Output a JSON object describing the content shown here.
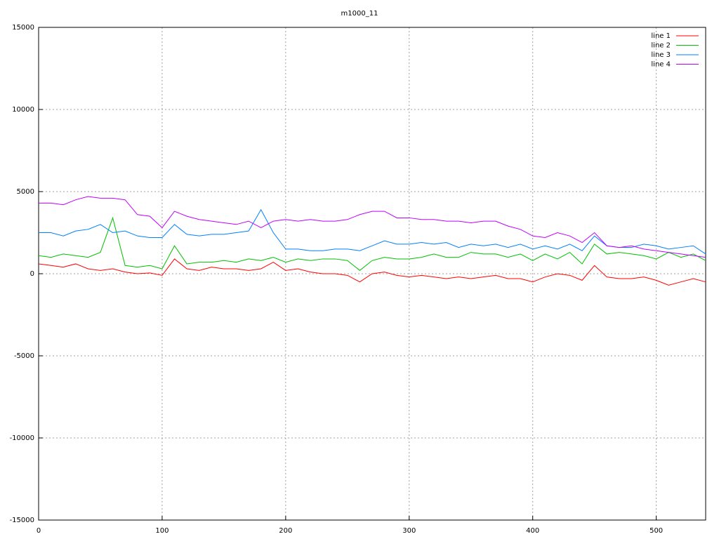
{
  "chart_data": {
    "type": "line",
    "title": "m1000_11",
    "x": [
      0,
      10,
      20,
      30,
      40,
      50,
      60,
      70,
      80,
      90,
      100,
      110,
      120,
      130,
      140,
      150,
      160,
      170,
      180,
      190,
      200,
      210,
      220,
      230,
      240,
      250,
      260,
      270,
      280,
      290,
      300,
      310,
      320,
      330,
      340,
      350,
      360,
      370,
      380,
      390,
      400,
      410,
      420,
      430,
      440,
      450,
      460,
      470,
      480,
      490,
      500,
      510,
      520,
      530,
      540
    ],
    "series": [
      {
        "name": "line 1",
        "color": "#ff0000",
        "values": [
          600,
          500,
          400,
          600,
          300,
          200,
          300,
          100,
          0,
          50,
          -100,
          900,
          300,
          200,
          400,
          300,
          300,
          200,
          300,
          700,
          200,
          300,
          100,
          0,
          0,
          -100,
          -500,
          0,
          100,
          -100,
          -200,
          -100,
          -200,
          -300,
          -200,
          -300,
          -200,
          -100,
          -300,
          -300,
          -500,
          -200,
          0,
          -100,
          -400,
          500,
          -200,
          -300,
          -300,
          -200,
          -400,
          -700,
          -500,
          -300,
          -500
        ]
      },
      {
        "name": "line 2",
        "color": "#00c000",
        "values": [
          1100,
          1000,
          1200,
          1100,
          1000,
          1300,
          3400,
          500,
          400,
          500,
          300,
          1700,
          600,
          700,
          700,
          800,
          700,
          900,
          800,
          1000,
          700,
          900,
          800,
          900,
          900,
          800,
          200,
          800,
          1000,
          900,
          900,
          1000,
          1200,
          1000,
          1000,
          1300,
          1200,
          1200,
          1000,
          1200,
          800,
          1200,
          900,
          1300,
          600,
          1800,
          1200,
          1300,
          1200,
          1100,
          900,
          1300,
          1000,
          1200,
          800
        ]
      },
      {
        "name": "line 3",
        "color": "#0080ff",
        "values": [
          2500,
          2500,
          2300,
          2600,
          2700,
          3000,
          2500,
          2600,
          2300,
          2200,
          2200,
          3000,
          2400,
          2300,
          2400,
          2400,
          2500,
          2600,
          3900,
          2500,
          1500,
          1500,
          1400,
          1400,
          1500,
          1500,
          1400,
          1700,
          2000,
          1800,
          1800,
          1900,
          1800,
          1900,
          1600,
          1800,
          1700,
          1800,
          1600,
          1800,
          1500,
          1700,
          1500,
          1800,
          1400,
          2300,
          1700,
          1600,
          1600,
          1800,
          1700,
          1500,
          1600,
          1700,
          1200
        ]
      },
      {
        "name": "line 4",
        "color": "#c000ff",
        "values": [
          4300,
          4300,
          4200,
          4500,
          4700,
          4600,
          4600,
          4500,
          3600,
          3500,
          2800,
          3800,
          3500,
          3300,
          3200,
          3100,
          3000,
          3200,
          2800,
          3200,
          3300,
          3200,
          3300,
          3200,
          3200,
          3300,
          3600,
          3800,
          3800,
          3400,
          3400,
          3300,
          3300,
          3200,
          3200,
          3100,
          3200,
          3200,
          2900,
          2700,
          2300,
          2200,
          2500,
          2300,
          1900,
          2500,
          1700,
          1600,
          1700,
          1500,
          1400,
          1300,
          1200,
          1100,
          1000
        ]
      }
    ],
    "xlim": [
      0,
      540
    ],
    "xticks": [
      0,
      100,
      200,
      300,
      400,
      500
    ],
    "ylim": [
      -15000,
      15000
    ],
    "yticks": [
      -15000,
      -10000,
      -5000,
      0,
      5000,
      10000,
      15000
    ],
    "grid": true,
    "legend": "top-right"
  }
}
